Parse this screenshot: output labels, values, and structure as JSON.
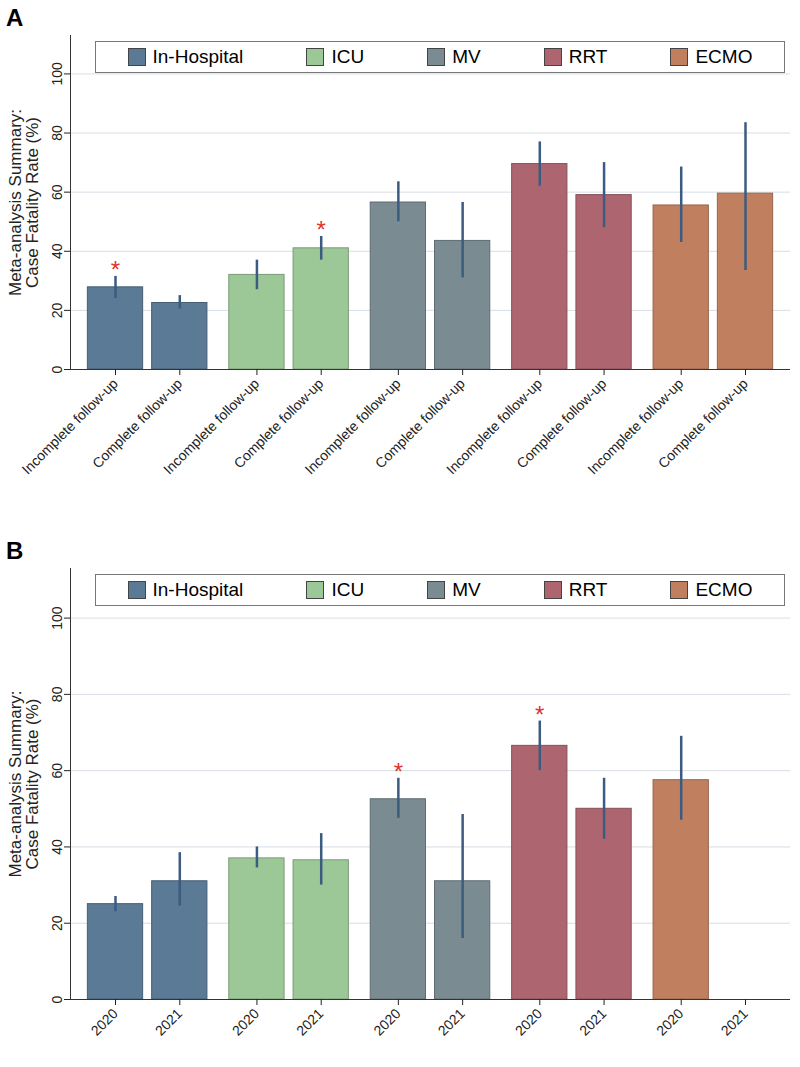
{
  "chart_data": [
    {
      "type": "bar",
      "title": "A",
      "ylabel": "Meta-analysis Summary:\nCase Fatality Rate (%)",
      "categories": [
        "Incomplete follow-up",
        "Complete follow-up"
      ],
      "series": [
        {
          "name": "In-Hospital",
          "color": "#5a7a96",
          "values": [
            27.8,
            22.5
          ],
          "ci_low": [
            24,
            20.5
          ],
          "ci_high": [
            31.5,
            25
          ]
        },
        {
          "name": "ICU",
          "color": "#9cc797",
          "values": [
            32,
            41
          ],
          "ci_low": [
            27,
            37
          ],
          "ci_high": [
            37,
            45
          ]
        },
        {
          "name": "MV",
          "color": "#7a8b92",
          "values": [
            56.5,
            43.5
          ],
          "ci_low": [
            50,
            31
          ],
          "ci_high": [
            63.5,
            56.5
          ]
        },
        {
          "name": "RRT",
          "color": "#ad6670",
          "values": [
            69.5,
            59
          ],
          "ci_low": [
            62,
            48
          ],
          "ci_high": [
            77,
            70
          ]
        },
        {
          "name": "ECMO",
          "color": "#c08060",
          "values": [
            55.5,
            59.5
          ],
          "ci_low": [
            43,
            33.5
          ],
          "ci_high": [
            68.5,
            83.5
          ]
        }
      ],
      "annotations": [
        {
          "series": "In-Hospital",
          "category": "Incomplete follow-up",
          "text": "*"
        },
        {
          "series": "ICU",
          "category": "Complete follow-up",
          "text": "*"
        }
      ],
      "ylim": [
        0,
        113
      ],
      "yticks": [
        0,
        20,
        40,
        60,
        80,
        100
      ],
      "grid": true,
      "legend": "top"
    },
    {
      "type": "bar",
      "title": "B",
      "ylabel": "Meta-analysis Summary:\nCase Fatality Rate (%)",
      "categories": [
        "2020",
        "2021"
      ],
      "series": [
        {
          "name": "In-Hospital",
          "color": "#5a7a96",
          "values": [
            25,
            31
          ],
          "ci_low": [
            23,
            24.5
          ],
          "ci_high": [
            27,
            38.5
          ]
        },
        {
          "name": "ICU",
          "color": "#9cc797",
          "values": [
            37,
            36.5
          ],
          "ci_low": [
            34.5,
            30
          ],
          "ci_high": [
            40,
            43.5
          ]
        },
        {
          "name": "MV",
          "color": "#7a8b92",
          "values": [
            52.5,
            31
          ],
          "ci_low": [
            47.5,
            16
          ],
          "ci_high": [
            58,
            48.5
          ]
        },
        {
          "name": "RRT",
          "color": "#ad6670",
          "values": [
            66.5,
            50
          ],
          "ci_low": [
            60,
            42
          ],
          "ci_high": [
            73,
            58
          ]
        },
        {
          "name": "ECMO",
          "color": "#c08060",
          "values": [
            57.5,
            null
          ],
          "ci_low": [
            47,
            null
          ],
          "ci_high": [
            69,
            null
          ]
        }
      ],
      "annotations": [
        {
          "series": "MV",
          "category": "2020",
          "text": "*"
        },
        {
          "series": "RRT",
          "category": "2020",
          "text": "*"
        }
      ],
      "ylim": [
        0,
        113
      ],
      "yticks": [
        0,
        20,
        40,
        60,
        80,
        100
      ],
      "grid": true,
      "legend": "top"
    }
  ]
}
